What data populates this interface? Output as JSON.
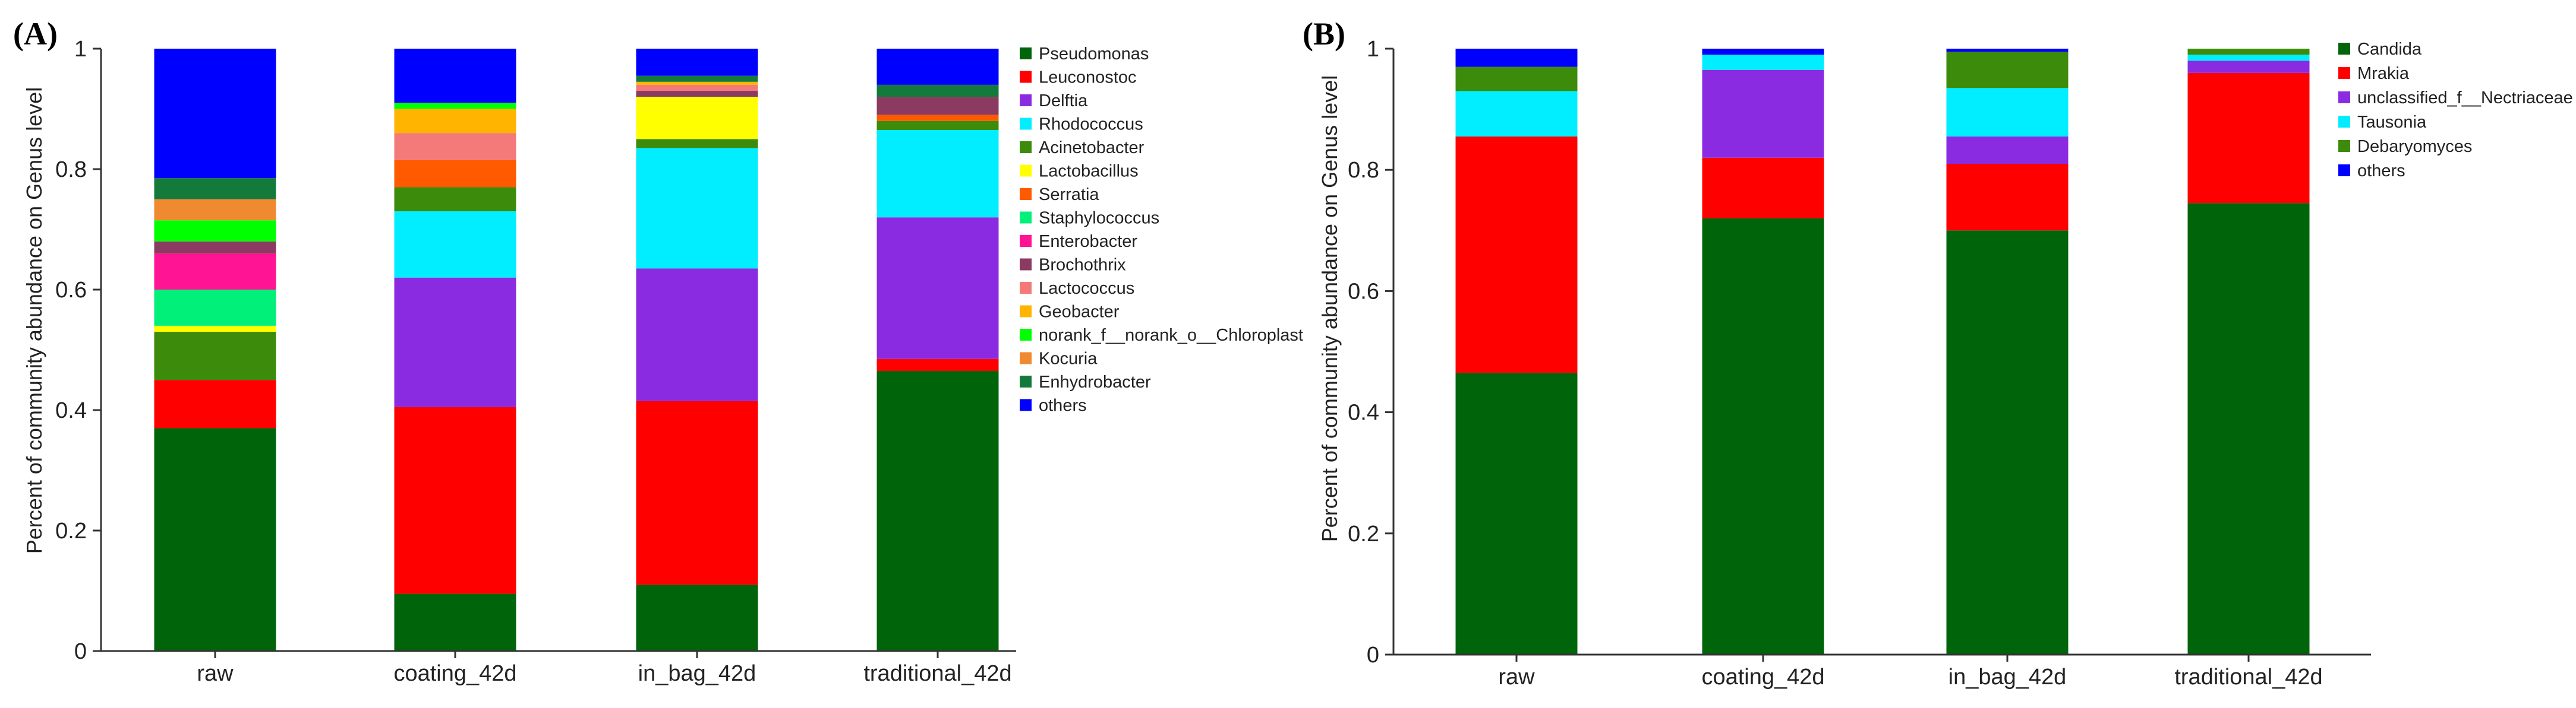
{
  "chart_data": [
    {
      "panel_label": "(A)",
      "type": "bar",
      "stacked": true,
      "ylabel": "Percent of community abundance on Genus level",
      "ylim": [
        0,
        1
      ],
      "yticks": [
        "0",
        "0.2",
        "0.4",
        "0.6",
        "0.8",
        "1"
      ],
      "categories": [
        "raw",
        "coating_42d",
        "in_bag_42d",
        "traditional_42d"
      ],
      "legend_position": "right",
      "series": [
        {
          "name": "Pseudomonas",
          "color": "#00640A",
          "values": [
            0.37,
            0.095,
            0.11,
            0.465
          ]
        },
        {
          "name": "Leuconostoc",
          "color": "#FF0000",
          "values": [
            0.08,
            0.31,
            0.305,
            0.02
          ]
        },
        {
          "name": "Delftia",
          "color": "#8A2BE2",
          "values": [
            0.0,
            0.215,
            0.22,
            0.235
          ]
        },
        {
          "name": "Rhodococcus",
          "color": "#00EEFF",
          "values": [
            0.0,
            0.11,
            0.2,
            0.145
          ]
        },
        {
          "name": "Acinetobacter",
          "color": "#3D8B0A",
          "values": [
            0.08,
            0.04,
            0.015,
            0.015
          ]
        },
        {
          "name": "Lactobacillus",
          "color": "#FFFF00",
          "values": [
            0.01,
            0.0,
            0.07,
            0.0
          ]
        },
        {
          "name": "Serratia",
          "color": "#FF5A00",
          "values": [
            0.0,
            0.045,
            0.0,
            0.01
          ]
        },
        {
          "name": "Staphylococcus",
          "color": "#00F07A",
          "values": [
            0.06,
            0.0,
            0.0,
            0.0
          ]
        },
        {
          "name": "Enterobacter",
          "color": "#FF1493",
          "values": [
            0.06,
            0.0,
            0.0,
            0.0
          ]
        },
        {
          "name": "Brochothrix",
          "color": "#8B3A62",
          "values": [
            0.02,
            0.0,
            0.01,
            0.03
          ]
        },
        {
          "name": "Lactococcus",
          "color": "#F47A7A",
          "values": [
            0.0,
            0.045,
            0.01,
            0.0
          ]
        },
        {
          "name": "Geobacter",
          "color": "#FFB400",
          "values": [
            0.0,
            0.04,
            0.005,
            0.0
          ]
        },
        {
          "name": "norank_f__norank_o__Chloroplast",
          "color": "#00FF00",
          "values": [
            0.035,
            0.01,
            0.0,
            0.0
          ]
        },
        {
          "name": "Kocuria",
          "color": "#F08A30",
          "values": [
            0.035,
            0.0,
            0.0,
            0.0
          ]
        },
        {
          "name": "Enhydrobacter",
          "color": "#137A3C",
          "values": [
            0.035,
            0.0,
            0.01,
            0.02
          ]
        },
        {
          "name": "others",
          "color": "#0000FF",
          "values": [
            0.215,
            0.09,
            0.045,
            0.06
          ]
        }
      ]
    },
    {
      "panel_label": "(B)",
      "type": "bar",
      "stacked": true,
      "ylabel": "Percent of community abundance on Genus level",
      "ylim": [
        0,
        1
      ],
      "yticks": [
        "0",
        "0.2",
        "0.4",
        "0.6",
        "0.8",
        "1"
      ],
      "categories": [
        "raw",
        "coating_42d",
        "in_bag_42d",
        "traditional_42d"
      ],
      "legend_position": "right",
      "series": [
        {
          "name": "Candida",
          "color": "#00640A",
          "values": [
            0.465,
            0.72,
            0.7,
            0.745
          ]
        },
        {
          "name": "Mrakia",
          "color": "#FF0000",
          "values": [
            0.39,
            0.1,
            0.11,
            0.215
          ]
        },
        {
          "name": "unclassified_f__Nectriaceae",
          "color": "#8A2BE2",
          "values": [
            0.0,
            0.145,
            0.045,
            0.02
          ]
        },
        {
          "name": "Tausonia",
          "color": "#00EEFF",
          "values": [
            0.075,
            0.025,
            0.08,
            0.01
          ]
        },
        {
          "name": "Debaryomyces",
          "color": "#3D8B0A",
          "values": [
            0.04,
            0.0,
            0.06,
            0.01
          ]
        },
        {
          "name": "others",
          "color": "#0000FF",
          "values": [
            0.03,
            0.01,
            0.005,
            0.0
          ]
        }
      ]
    }
  ]
}
